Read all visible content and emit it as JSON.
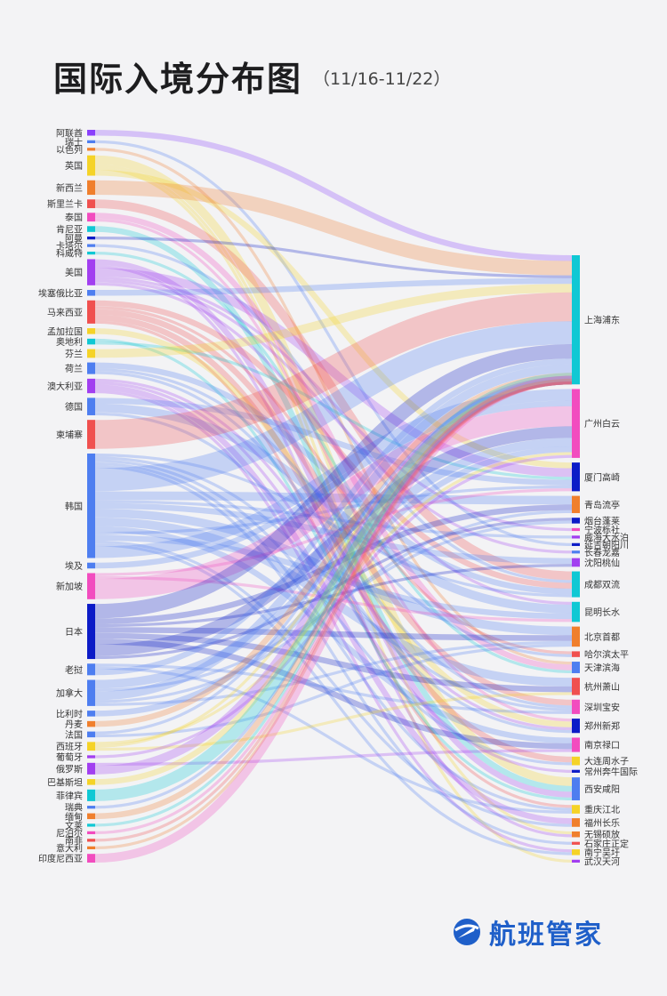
{
  "header": {
    "title": "国际入境分布图",
    "subtitle": "（11/16-11/22）"
  },
  "brand": {
    "name": "航班管家",
    "icon": "plane-globe-icon"
  },
  "chart_data": {
    "type": "sankey",
    "title": "国际入境分布图",
    "subtitle": "（11/16-11/22）",
    "sources": [
      {
        "name": "阿联酋",
        "value": 2,
        "color": "#8a3ffc"
      },
      {
        "name": "瑞士",
        "value": 1,
        "color": "#4e7ef0"
      },
      {
        "name": "以色列",
        "value": 1,
        "color": "#f07f2d"
      },
      {
        "name": "英国",
        "value": 7,
        "color": "#f5d327"
      },
      {
        "name": "新西兰",
        "value": 5,
        "color": "#f07f2d"
      },
      {
        "name": "斯里兰卡",
        "value": 3,
        "color": "#f0504f"
      },
      {
        "name": "泰国",
        "value": 3,
        "color": "#f24cbf"
      },
      {
        "name": "肯尼亚",
        "value": 2,
        "color": "#10c8d4"
      },
      {
        "name": "阿曼",
        "value": 1,
        "color": "#0c1bc7"
      },
      {
        "name": "卡塔尔",
        "value": 1,
        "color": "#4e7ef0"
      },
      {
        "name": "科威特",
        "value": 1,
        "color": "#10c8d4"
      },
      {
        "name": "美国",
        "value": 9,
        "color": "#a23ff0"
      },
      {
        "name": "埃塞俄比亚",
        "value": 2,
        "color": "#4e7ef0"
      },
      {
        "name": "马来西亚",
        "value": 8,
        "color": "#f0504f"
      },
      {
        "name": "孟加拉国",
        "value": 2,
        "color": "#f5d327"
      },
      {
        "name": "奥地利",
        "value": 2,
        "color": "#10c8d4"
      },
      {
        "name": "芬兰",
        "value": 3,
        "color": "#f5d327"
      },
      {
        "name": "荷兰",
        "value": 4,
        "color": "#4e7ef0"
      },
      {
        "name": "澳大利亚",
        "value": 5,
        "color": "#a23ff0"
      },
      {
        "name": "德国",
        "value": 6,
        "color": "#4e7ef0"
      },
      {
        "name": "柬埔寨",
        "value": 10,
        "color": "#f0504f"
      },
      {
        "name": "韩国",
        "value": 36,
        "color": "#4e7ef0"
      },
      {
        "name": "埃及",
        "value": 2,
        "color": "#4e7ef0"
      },
      {
        "name": "新加坡",
        "value": 9,
        "color": "#f24cbf"
      },
      {
        "name": "日本",
        "value": 19,
        "color": "#0c1bc7"
      },
      {
        "name": "老挝",
        "value": 4,
        "color": "#4e7ef0"
      },
      {
        "name": "加拿大",
        "value": 9,
        "color": "#4e7ef0"
      },
      {
        "name": "比利时",
        "value": 2,
        "color": "#4e7ef0"
      },
      {
        "name": "丹麦",
        "value": 2,
        "color": "#f07f2d"
      },
      {
        "name": "法国",
        "value": 2,
        "color": "#4e7ef0"
      },
      {
        "name": "西班牙",
        "value": 3,
        "color": "#f5d327"
      },
      {
        "name": "葡萄牙",
        "value": 1,
        "color": "#a23ff0"
      },
      {
        "name": "俄罗斯",
        "value": 4,
        "color": "#a23ff0"
      },
      {
        "name": "巴基斯坦",
        "value": 2,
        "color": "#f5d327"
      },
      {
        "name": "菲律宾",
        "value": 4,
        "color": "#10c8d4"
      },
      {
        "name": "瑞典",
        "value": 1,
        "color": "#4e7ef0"
      },
      {
        "name": "缅甸",
        "value": 2,
        "color": "#f07f2d"
      },
      {
        "name": "文莱",
        "value": 1,
        "color": "#10c8d4"
      },
      {
        "name": "尼泊尔",
        "value": 1,
        "color": "#f24cbf"
      },
      {
        "name": "南非",
        "value": 1,
        "color": "#f0504f"
      },
      {
        "name": "意大利",
        "value": 1,
        "color": "#f07f2d"
      },
      {
        "name": "印度尼西亚",
        "value": 3,
        "color": "#f24cbf"
      }
    ],
    "targets": [
      {
        "name": "上海浦东",
        "value": 45,
        "color": "#10c8d4"
      },
      {
        "name": "广州白云",
        "value": 24,
        "color": "#f24cbf"
      },
      {
        "name": "厦门高崎",
        "value": 10,
        "color": "#0c1bc7"
      },
      {
        "name": "青岛流亭",
        "value": 6,
        "color": "#f07f2d"
      },
      {
        "name": "烟台蓬莱",
        "value": 2,
        "color": "#0c1bc7"
      },
      {
        "name": "宁波栎社",
        "value": 1,
        "color": "#f24cbf"
      },
      {
        "name": "威海大水泊",
        "value": 1,
        "color": "#a23ff0"
      },
      {
        "name": "延吉朝阳川",
        "value": 1,
        "color": "#0c1bc7"
      },
      {
        "name": "长春龙嘉",
        "value": 1,
        "color": "#4e7ef0"
      },
      {
        "name": "沈阳桃仙",
        "value": 3,
        "color": "#a23ff0"
      },
      {
        "name": "成都双流",
        "value": 9,
        "color": "#10c8d4"
      },
      {
        "name": "昆明长水",
        "value": 7,
        "color": "#10c8d4"
      },
      {
        "name": "北京首都",
        "value": 7,
        "color": "#f07f2d"
      },
      {
        "name": "哈尔滨太平",
        "value": 2,
        "color": "#f0504f"
      },
      {
        "name": "天津滨海",
        "value": 4,
        "color": "#4e7ef0"
      },
      {
        "name": "杭州萧山",
        "value": 6,
        "color": "#f0504f"
      },
      {
        "name": "深圳宝安",
        "value": 5,
        "color": "#f24cbf"
      },
      {
        "name": "郑州新郑",
        "value": 5,
        "color": "#0c1bc7"
      },
      {
        "name": "南京禄口",
        "value": 5,
        "color": "#f24cbf"
      },
      {
        "name": "大连周水子",
        "value": 3,
        "color": "#f5d327"
      },
      {
        "name": "常州奔牛国际",
        "value": 1,
        "color": "#0c1bc7"
      },
      {
        "name": "西安咸阳",
        "value": 8,
        "color": "#4e7ef0"
      },
      {
        "name": "重庆江北",
        "value": 3,
        "color": "#f5d327"
      },
      {
        "name": "福州长乐",
        "value": 3,
        "color": "#f07f2d"
      },
      {
        "name": "无锡硕放",
        "value": 2,
        "color": "#f07f2d"
      },
      {
        "name": "石家庄正定",
        "value": 1,
        "color": "#f0504f"
      },
      {
        "name": "南宁吴圩",
        "value": 2,
        "color": "#f5d327"
      },
      {
        "name": "武汉天河",
        "value": 1,
        "color": "#a23ff0"
      }
    ]
  }
}
